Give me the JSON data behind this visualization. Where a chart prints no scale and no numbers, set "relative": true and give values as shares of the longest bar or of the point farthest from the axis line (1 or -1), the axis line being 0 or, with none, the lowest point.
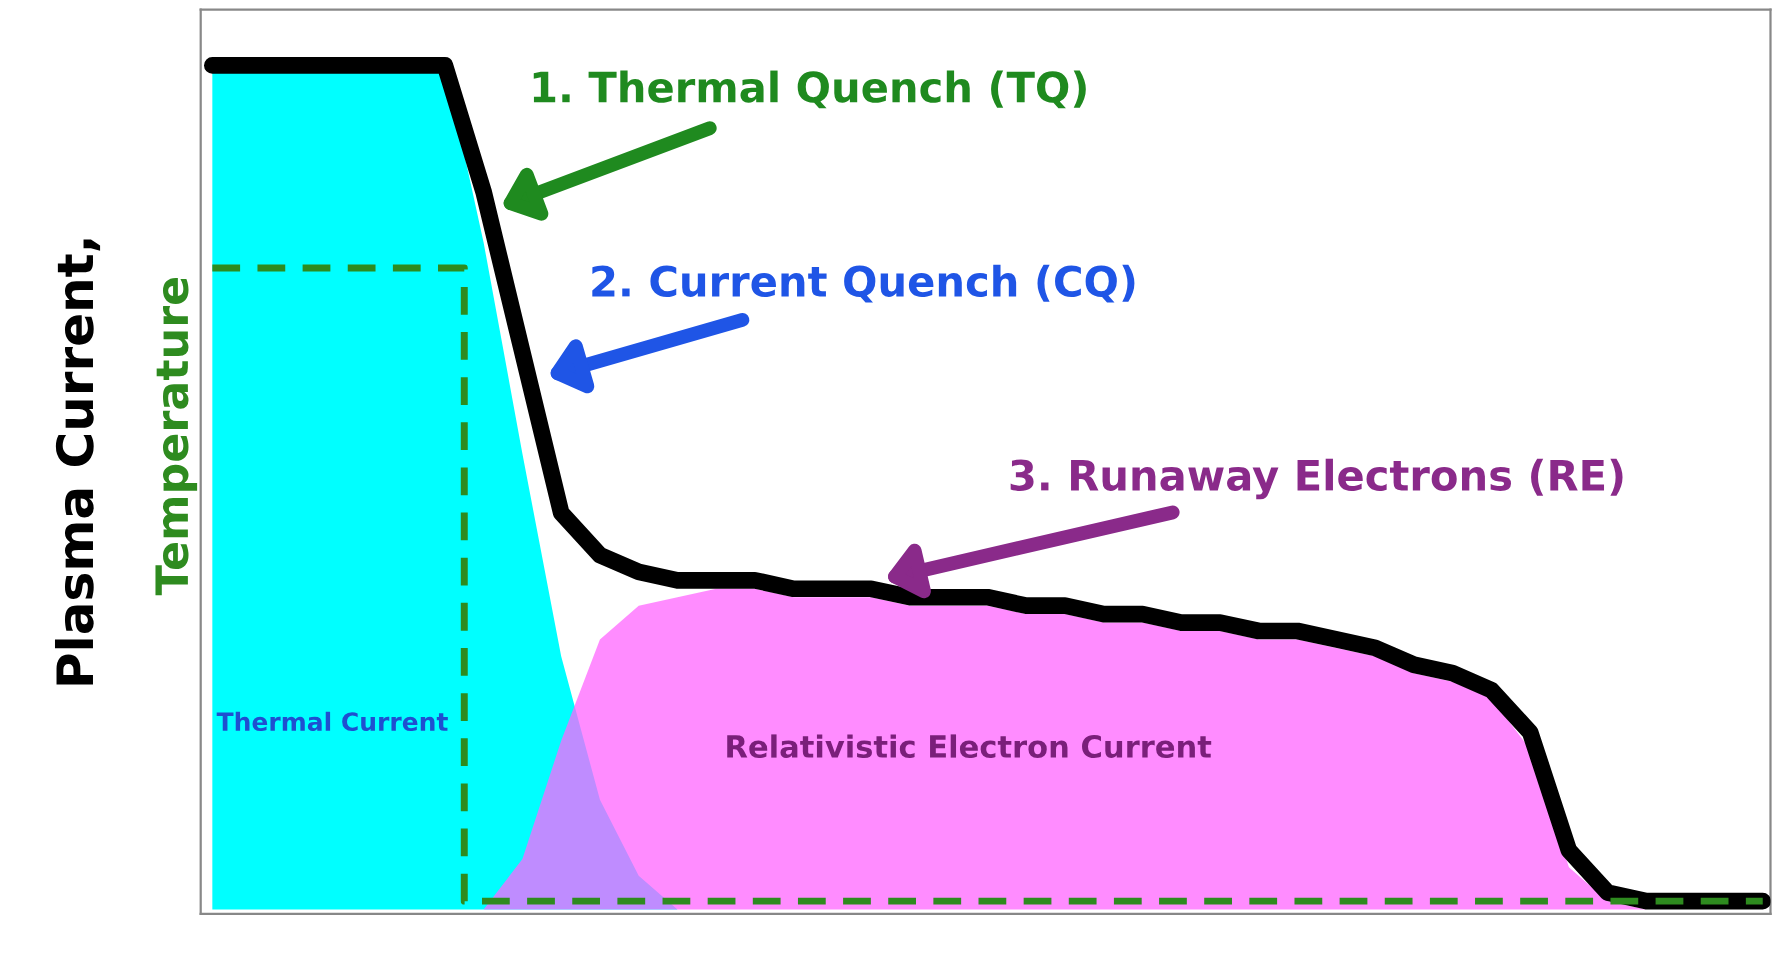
{
  "chart_data": {
    "type": "area",
    "relative": true,
    "categories": [
      null,
      null,
      null,
      null,
      null,
      null,
      null,
      null,
      null,
      null,
      null,
      null,
      null,
      null,
      null,
      null,
      null,
      null,
      null,
      null,
      null,
      null,
      null,
      null,
      null,
      null,
      null,
      null,
      null,
      null,
      null,
      null,
      null,
      null,
      null,
      null,
      null,
      null,
      null,
      null,
      null
    ],
    "ylabel": "Plasma Current,",
    "series": [
      {
        "name": "Thermal Current",
        "color": "#00ffff",
        "values": [
          1.0,
          1.0,
          1.0,
          1.0,
          1.0,
          1.0,
          1.0,
          0.79,
          0.54,
          0.3,
          0.13,
          0.04,
          0,
          0,
          0,
          0,
          0,
          0,
          0,
          0,
          0,
          0,
          0,
          0,
          0,
          0,
          0,
          0,
          0,
          0,
          0,
          0,
          0,
          0,
          0,
          0,
          0,
          0,
          0,
          0,
          0
        ]
      },
      {
        "name": "Relativistic Electron Current",
        "color": "#ff66ff",
        "values": [
          0,
          0,
          0,
          0,
          0,
          0,
          0,
          0,
          0.06,
          0.2,
          0.32,
          0.36,
          0.37,
          0.38,
          0.38,
          0.37,
          0.37,
          0.37,
          0.36,
          0.36,
          0.36,
          0.35,
          0.35,
          0.34,
          0.34,
          0.33,
          0.33,
          0.32,
          0.32,
          0.31,
          0.3,
          0.28,
          0.27,
          0.25,
          0.19,
          0.05,
          0.01,
          0,
          0,
          0,
          0
        ]
      },
      {
        "type": "line",
        "color": "#000000",
        "values": [
          1.0,
          1.0,
          1.0,
          1.0,
          1.0,
          1.0,
          1.0,
          0.85,
          0.66,
          0.47,
          0.42,
          0.4,
          0.39,
          0.39,
          0.39,
          0.38,
          0.38,
          0.38,
          0.37,
          0.37,
          0.37,
          0.36,
          0.36,
          0.35,
          0.35,
          0.34,
          0.34,
          0.33,
          0.33,
          0.32,
          0.31,
          0.29,
          0.28,
          0.26,
          0.21,
          0.07,
          0.02,
          0.01,
          0.01,
          0.01,
          0.01
        ]
      },
      {
        "name": "Temperature",
        "type": "step",
        "color": "#2e8b1f",
        "line_style": "dashed",
        "values": [
          0.76,
          0.76,
          0.76,
          0.76,
          0.76,
          0.76,
          0.76,
          0.01,
          0.01,
          0.01,
          0.01,
          0.01,
          0.01,
          0.01,
          0.01,
          0.01,
          0.01,
          0.01,
          0.01,
          0.01,
          0.01,
          0.01,
          0.01,
          0.01,
          0.01,
          0.01,
          0.01,
          0.01,
          0.01,
          0.01,
          0.01,
          0.01,
          0.01,
          0.01,
          0.01,
          0.01,
          0.01,
          0.01,
          0.01,
          0.01,
          0.01
        ]
      }
    ],
    "annotations": [
      "1. Thermal Quench (TQ)",
      "2. Current Quench (CQ)",
      "3. Runaway Electrons (RE)"
    ]
  }
}
